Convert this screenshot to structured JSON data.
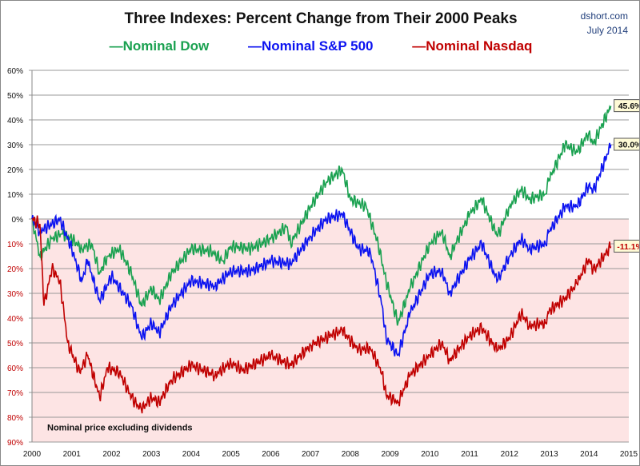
{
  "chart_data": {
    "type": "line",
    "title": "Three Indexes: Percent Change from Their 2000 Peaks",
    "source": "dshort.com",
    "date": "July 2014",
    "note": "Nominal price excluding dividends",
    "xlim": [
      2000,
      2015
    ],
    "ylim": [
      -90,
      60
    ],
    "x_ticks": [
      "2000",
      "2001",
      "2002",
      "2003",
      "2004",
      "2005",
      "2006",
      "2007",
      "2008",
      "2009",
      "2010",
      "2011",
      "2012",
      "2013",
      "2014",
      "2015"
    ],
    "y_ticks": [
      {
        "v": 60,
        "l": "60%"
      },
      {
        "v": 50,
        "l": "50%"
      },
      {
        "v": 40,
        "l": "40%"
      },
      {
        "v": 30,
        "l": "30%"
      },
      {
        "v": 20,
        "l": "20%"
      },
      {
        "v": 10,
        "l": "10%"
      },
      {
        "v": 0,
        "l": "0%"
      },
      {
        "v": -10,
        "l": "10%"
      },
      {
        "v": -20,
        "l": "20%"
      },
      {
        "v": -30,
        "l": "30%"
      },
      {
        "v": -40,
        "l": "40%"
      },
      {
        "v": -50,
        "l": "50%"
      },
      {
        "v": -60,
        "l": "60%"
      },
      {
        "v": -70,
        "l": "70%"
      },
      {
        "v": -80,
        "l": "80%"
      },
      {
        "v": -90,
        "l": "90%"
      }
    ],
    "negative_region_color": "#fde4e4",
    "grid": true,
    "series": [
      {
        "name": "Nominal Dow",
        "color": "#1aa150",
        "end_label": "45.6%",
        "x": [
          2000,
          2000.2,
          2000.5,
          2000.75,
          2001,
          2001.25,
          2001.5,
          2001.7,
          2001.9,
          2002.2,
          2002.5,
          2002.75,
          2003,
          2003.2,
          2003.5,
          2004,
          2004.5,
          2004.8,
          2005,
          2005.5,
          2006,
          2006.4,
          2006.5,
          2007,
          2007.4,
          2007.8,
          2008,
          2008.4,
          2008.7,
          2008.9,
          2009.2,
          2009.5,
          2010,
          2010.3,
          2010.5,
          2011,
          2011.3,
          2011.7,
          2012,
          2012.3,
          2012.5,
          2012.9,
          2013,
          2013.4,
          2013.7,
          2014,
          2014.1,
          2014.55
        ],
        "y": [
          0,
          -15,
          -8,
          -6,
          -8,
          -12,
          -10,
          -22,
          -15,
          -12,
          -22,
          -35,
          -28,
          -33,
          -22,
          -12,
          -13,
          -17,
          -11,
          -12,
          -8,
          -3,
          -10,
          5,
          15,
          20,
          8,
          5,
          -10,
          -25,
          -42,
          -28,
          -10,
          -5,
          -15,
          2,
          8,
          -7,
          5,
          12,
          8,
          10,
          16,
          30,
          27,
          35,
          30,
          45.6
        ]
      },
      {
        "name": "Nominal S&P 500",
        "color": "#0b12f0",
        "end_label": "30.0%",
        "x": [
          2000,
          2000.2,
          2000.7,
          2001,
          2001.25,
          2001.4,
          2001.7,
          2002,
          2002.5,
          2002.75,
          2003,
          2003.2,
          2003.5,
          2004,
          2004.6,
          2005,
          2005.5,
          2006,
          2006.5,
          2007,
          2007.4,
          2007.8,
          2008.2,
          2008.5,
          2008.8,
          2008.9,
          2009.2,
          2009.5,
          2010,
          2010.3,
          2010.5,
          2011,
          2011.3,
          2011.7,
          2012,
          2012.3,
          2012.5,
          2012.9,
          2013,
          2013.4,
          2013.7,
          2014,
          2014.1,
          2014.55
        ],
        "y": [
          0,
          -5,
          0,
          -12,
          -25,
          -17,
          -33,
          -23,
          -35,
          -48,
          -42,
          -46,
          -35,
          -25,
          -27,
          -21,
          -21,
          -17,
          -18,
          -7,
          0,
          2,
          -12,
          -13,
          -35,
          -48,
          -55,
          -38,
          -22,
          -21,
          -30,
          -16,
          -10,
          -25,
          -15,
          -8,
          -12,
          -10,
          -5,
          5,
          5,
          14,
          11,
          30
        ]
      },
      {
        "name": "Nominal Nasdaq",
        "color": "#c00000",
        "end_label": "-11.1%",
        "x": [
          2000,
          2000.2,
          2000.3,
          2000.5,
          2000.7,
          2000.9,
          2001.2,
          2001.4,
          2001.7,
          2001.9,
          2002.2,
          2002.5,
          2002.75,
          2003,
          2003.2,
          2003.5,
          2004,
          2004.6,
          2005,
          2005.3,
          2006,
          2006.5,
          2007,
          2007.5,
          2007.8,
          2008.2,
          2008.5,
          2008.8,
          2008.9,
          2009.2,
          2009.5,
          2010,
          2010.3,
          2010.5,
          2011,
          2011.3,
          2011.7,
          2012,
          2012.3,
          2012.5,
          2012.9,
          2013,
          2013.4,
          2013.7,
          2014,
          2014.1,
          2014.55
        ],
        "y": [
          0,
          -2,
          -35,
          -20,
          -25,
          -50,
          -62,
          -55,
          -72,
          -60,
          -62,
          -72,
          -77,
          -72,
          -74,
          -65,
          -59,
          -63,
          -58,
          -61,
          -55,
          -59,
          -51,
          -47,
          -45,
          -53,
          -52,
          -62,
          -71,
          -74,
          -63,
          -55,
          -50,
          -57,
          -47,
          -44,
          -53,
          -48,
          -38,
          -43,
          -42,
          -37,
          -32,
          -26,
          -16,
          -21,
          -11.1
        ]
      }
    ]
  }
}
